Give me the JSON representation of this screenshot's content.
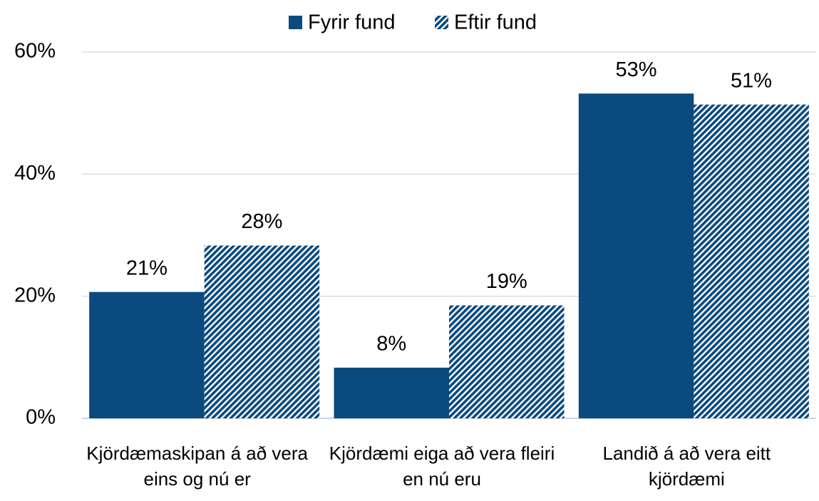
{
  "chart_data": {
    "type": "bar",
    "categories": [
      "Kjördæmaskipan á að vera eins og nú er",
      "Kjördæmi eiga að vera fleiri en nú eru",
      "Landið á að vera eitt kjördæmi"
    ],
    "series": [
      {
        "name": "Fyrir fund",
        "color": "#0b4a7f",
        "hatch": false,
        "values": [
          20.7,
          8.3,
          53.2
        ],
        "value_labels": [
          "21%",
          "8%",
          "53%"
        ]
      },
      {
        "name": "Eftir fund",
        "color": "#0b4a7f",
        "hatch": true,
        "values": [
          28.3,
          18.5,
          51.4
        ],
        "value_labels": [
          "28%",
          "19%",
          "51%"
        ]
      }
    ],
    "ylim": [
      0,
      60
    ],
    "yticks": [
      {
        "value": 0,
        "label": "0%"
      },
      {
        "value": 20,
        "label": "20%"
      },
      {
        "value": 40,
        "label": "40%"
      },
      {
        "value": 60,
        "label": "60%"
      }
    ],
    "grid": true,
    "legend": "top"
  }
}
